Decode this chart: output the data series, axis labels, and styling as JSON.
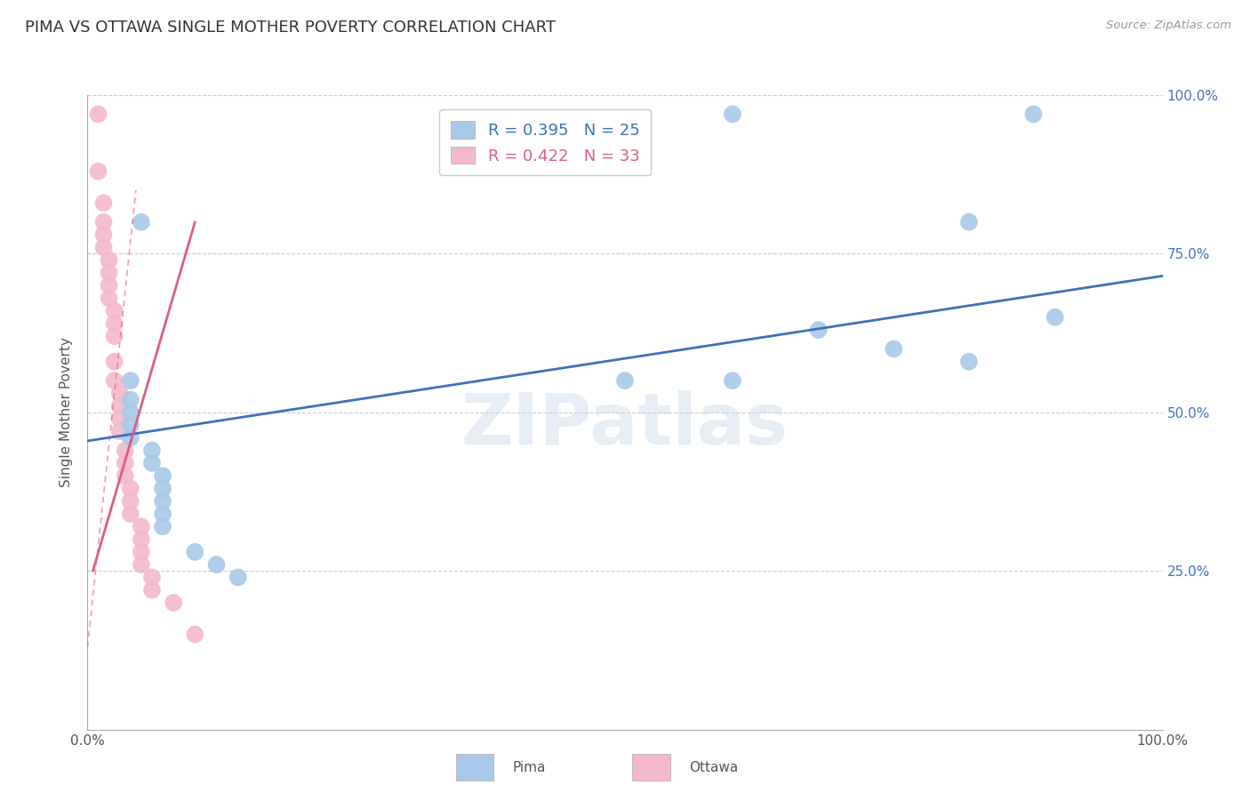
{
  "title": "PIMA VS OTTAWA SINGLE MOTHER POVERTY CORRELATION CHART",
  "source": "Source: ZipAtlas.com",
  "ylabel": "Single Mother Poverty",
  "xlim": [
    0.0,
    1.0
  ],
  "ylim": [
    0.0,
    1.0
  ],
  "ytick_positions": [
    0.25,
    0.5,
    0.75,
    1.0
  ],
  "ytick_labels": [
    "25.0%",
    "50.0%",
    "75.0%",
    "100.0%"
  ],
  "pima_color": "#a8c8e8",
  "ottawa_color": "#f4b8cc",
  "pima_R": 0.395,
  "pima_N": 25,
  "ottawa_R": 0.422,
  "ottawa_N": 33,
  "pima_line_color": "#3b72b8",
  "ottawa_line_color": "#d9607b",
  "watermark": "ZIPatlas",
  "pima_line_x0": 0.0,
  "pima_line_y0": 0.455,
  "pima_line_x1": 1.0,
  "pima_line_y1": 0.715,
  "ottawa_line_x0": 0.005,
  "ottawa_line_y0": 0.25,
  "ottawa_line_x1": 0.1,
  "ottawa_line_y1": 0.8,
  "pima_points": [
    [
      0.05,
      0.8
    ],
    [
      0.6,
      0.97
    ],
    [
      0.88,
      0.97
    ],
    [
      0.82,
      0.8
    ],
    [
      0.9,
      0.65
    ],
    [
      0.68,
      0.63
    ],
    [
      0.75,
      0.6
    ],
    [
      0.82,
      0.58
    ],
    [
      0.5,
      0.55
    ],
    [
      0.6,
      0.55
    ],
    [
      0.04,
      0.55
    ],
    [
      0.04,
      0.52
    ],
    [
      0.04,
      0.5
    ],
    [
      0.04,
      0.48
    ],
    [
      0.04,
      0.46
    ],
    [
      0.06,
      0.44
    ],
    [
      0.06,
      0.42
    ],
    [
      0.07,
      0.4
    ],
    [
      0.07,
      0.38
    ],
    [
      0.07,
      0.36
    ],
    [
      0.07,
      0.34
    ],
    [
      0.07,
      0.32
    ],
    [
      0.1,
      0.28
    ],
    [
      0.12,
      0.26
    ],
    [
      0.14,
      0.24
    ]
  ],
  "ottawa_points": [
    [
      0.01,
      0.97
    ],
    [
      0.01,
      0.88
    ],
    [
      0.015,
      0.83
    ],
    [
      0.015,
      0.8
    ],
    [
      0.015,
      0.78
    ],
    [
      0.015,
      0.76
    ],
    [
      0.02,
      0.74
    ],
    [
      0.02,
      0.72
    ],
    [
      0.02,
      0.7
    ],
    [
      0.02,
      0.68
    ],
    [
      0.025,
      0.66
    ],
    [
      0.025,
      0.64
    ],
    [
      0.025,
      0.62
    ],
    [
      0.025,
      0.58
    ],
    [
      0.025,
      0.55
    ],
    [
      0.03,
      0.53
    ],
    [
      0.03,
      0.51
    ],
    [
      0.03,
      0.49
    ],
    [
      0.03,
      0.47
    ],
    [
      0.035,
      0.44
    ],
    [
      0.035,
      0.42
    ],
    [
      0.035,
      0.4
    ],
    [
      0.04,
      0.38
    ],
    [
      0.04,
      0.36
    ],
    [
      0.04,
      0.34
    ],
    [
      0.05,
      0.32
    ],
    [
      0.05,
      0.3
    ],
    [
      0.05,
      0.28
    ],
    [
      0.05,
      0.26
    ],
    [
      0.06,
      0.24
    ],
    [
      0.06,
      0.22
    ],
    [
      0.08,
      0.2
    ],
    [
      0.1,
      0.15
    ]
  ]
}
